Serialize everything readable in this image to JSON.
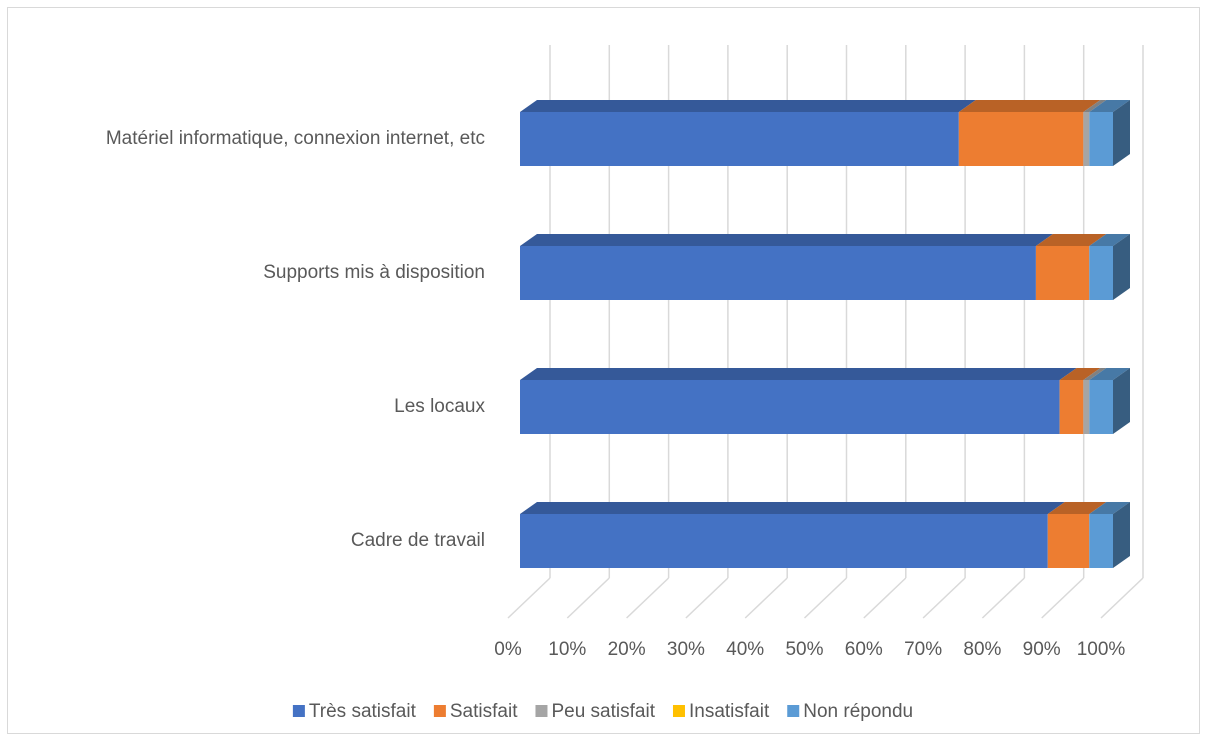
{
  "chart_data": {
    "type": "bar3d_stacked_horizontal",
    "categories": [
      "Matériel informatique, connexion internet, etc",
      "Supports mis à disposition",
      "Les locaux",
      "Cadre de travail"
    ],
    "series": [
      {
        "name": "Très satisfait",
        "color": "#4472c4",
        "values": [
          74,
          87,
          91,
          89
        ]
      },
      {
        "name": "Satisfait",
        "color": "#ed7d31",
        "values": [
          21,
          9,
          4,
          7
        ]
      },
      {
        "name": "Peu satisfait",
        "color": "#a5a5a5",
        "values": [
          1,
          0,
          1,
          0
        ]
      },
      {
        "name": "Insatisfait",
        "color": "#ffc000",
        "values": [
          0,
          0,
          0,
          0
        ]
      },
      {
        "name": "Non répondu",
        "color": "#5b9bd5",
        "values": [
          4,
          4,
          4,
          4
        ]
      }
    ],
    "xlim": [
      0,
      100
    ],
    "xticks": [
      {
        "value": 0,
        "label": "0%"
      },
      {
        "value": 10,
        "label": "10%"
      },
      {
        "value": 20,
        "label": "20%"
      },
      {
        "value": 30,
        "label": "30%"
      },
      {
        "value": 40,
        "label": "40%"
      },
      {
        "value": 50,
        "label": "50%"
      },
      {
        "value": 60,
        "label": "60%"
      },
      {
        "value": 70,
        "label": "70%"
      },
      {
        "value": 80,
        "label": "80%"
      },
      {
        "value": 90,
        "label": "90%"
      },
      {
        "value": 100,
        "label": "100%"
      }
    ],
    "grid": true,
    "legend": "bottom"
  }
}
